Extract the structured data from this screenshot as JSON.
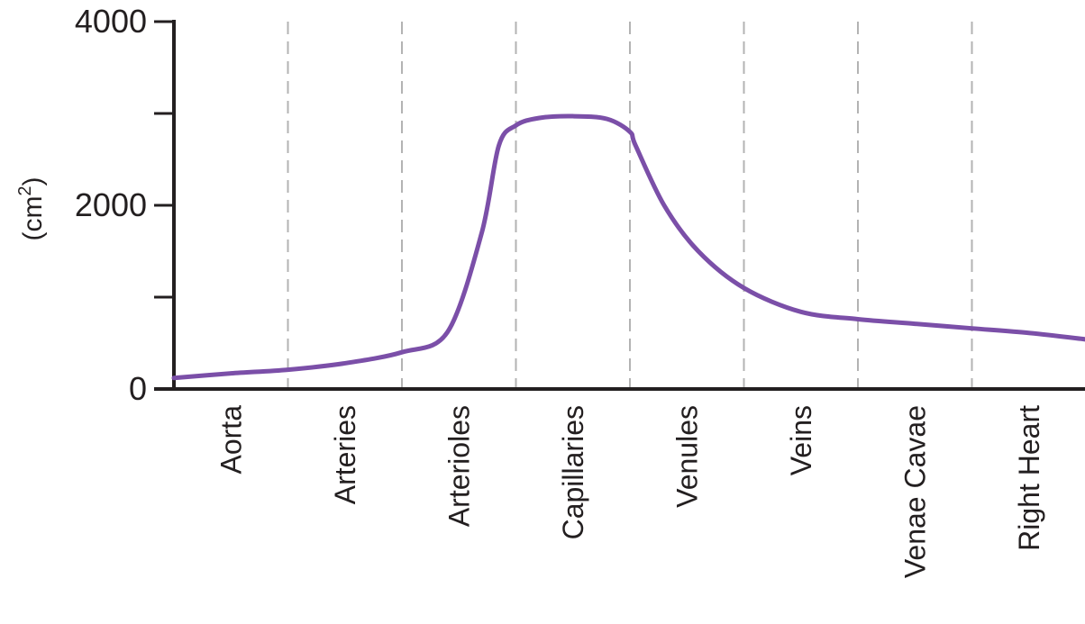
{
  "chart_data": {
    "type": "line",
    "title": "",
    "xlabel": "",
    "ylabel": "(cm2)",
    "ylabel_base": "(cm",
    "ylabel_sup": "2",
    "ylabel_close": ")",
    "ylim": [
      0,
      4000
    ],
    "yticks": [
      0,
      1000,
      2000,
      3000,
      4000
    ],
    "ytick_labels": [
      "0",
      "",
      "2000",
      "",
      "4000"
    ],
    "categories": [
      "Aorta",
      "Arteries",
      "Arterioles",
      "Capillaries",
      "Venules",
      "Veins",
      "Venae Cavae",
      "Right Heart"
    ],
    "grid": "dashed vertical dividers between categories",
    "line_color": "#7b4fa8",
    "series": [
      {
        "values_x": [
          0.0,
          0.5,
          1.0,
          1.5,
          2.0,
          2.4,
          2.7,
          2.85,
          3.0,
          3.2,
          3.5,
          3.8,
          4.0,
          4.05,
          4.3,
          4.6,
          5.0,
          5.5,
          6.0,
          6.5,
          7.0,
          7.5,
          8.0
        ],
        "values_y": [
          120,
          170,
          210,
          280,
          400,
          620,
          1700,
          2650,
          2870,
          2950,
          2970,
          2940,
          2800,
          2650,
          2000,
          1500,
          1100,
          840,
          760,
          710,
          660,
          610,
          540
        ]
      }
    ]
  }
}
